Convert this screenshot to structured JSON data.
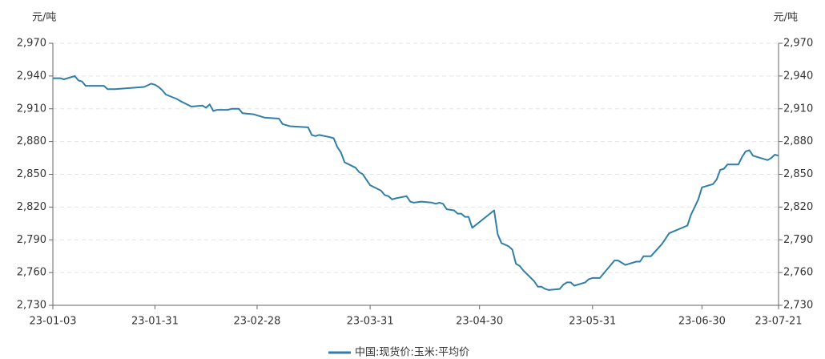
{
  "chart_data": {
    "type": "line",
    "y_unit": "元/吨",
    "y2_unit": "元/吨",
    "x": [
      "23-01-03",
      "23-01-05",
      "23-01-06",
      "23-01-09",
      "23-01-10",
      "23-01-11",
      "23-01-12",
      "23-01-17",
      "23-01-18",
      "23-01-20",
      "23-01-28",
      "23-01-30",
      "23-01-31",
      "23-02-01",
      "23-02-02",
      "23-02-03",
      "23-02-06",
      "23-02-07",
      "23-02-10",
      "23-02-13",
      "23-02-14",
      "23-02-15",
      "23-02-16",
      "23-02-17",
      "23-02-20",
      "23-02-21",
      "23-02-23",
      "23-02-24",
      "23-02-27",
      "23-02-28",
      "23-03-02",
      "23-03-06",
      "23-03-07",
      "23-03-08",
      "23-03-09",
      "23-03-14",
      "23-03-15",
      "23-03-16",
      "23-03-17",
      "23-03-20",
      "23-03-21",
      "23-03-22",
      "23-03-23",
      "23-03-24",
      "23-03-27",
      "23-03-28",
      "23-03-29",
      "23-03-30",
      "23-03-31",
      "23-04-03",
      "23-04-04",
      "23-04-05",
      "23-04-06",
      "23-04-07",
      "23-04-10",
      "23-04-11",
      "23-04-12",
      "23-04-14",
      "23-04-17",
      "23-04-18",
      "23-04-19",
      "23-04-20",
      "23-04-21",
      "23-04-23",
      "23-04-24",
      "23-04-25",
      "23-04-26",
      "23-04-27",
      "23-04-28",
      "23-05-04",
      "23-05-05",
      "23-05-06",
      "23-05-08",
      "23-05-09",
      "23-05-10",
      "23-05-11",
      "23-05-12",
      "23-05-15",
      "23-05-16",
      "23-05-17",
      "23-05-18",
      "23-05-19",
      "23-05-22",
      "23-05-23",
      "23-05-24",
      "23-05-25",
      "23-05-26",
      "23-05-29",
      "23-05-30",
      "23-05-31",
      "23-06-02",
      "23-06-05",
      "23-06-06",
      "23-06-07",
      "23-06-08",
      "23-06-09",
      "23-06-12",
      "23-06-13",
      "23-06-14",
      "23-06-16",
      "23-06-19",
      "23-06-20",
      "23-06-21",
      "23-06-26",
      "23-06-27",
      "23-06-28",
      "23-06-29",
      "23-06-30",
      "23-07-03",
      "23-07-04",
      "23-07-05",
      "23-07-06",
      "23-07-07",
      "23-07-10",
      "23-07-11",
      "23-07-12",
      "23-07-13",
      "23-07-14",
      "23-07-17",
      "23-07-18",
      "23-07-19",
      "23-07-20",
      "23-07-21"
    ],
    "series": [
      {
        "name": "中国:现货价:玉米:平均价",
        "color": "#2f7fa7",
        "values": [
          2938,
          2938,
          2937,
          2940,
          2936,
          2935,
          2931,
          2931,
          2928,
          2928,
          2930,
          2933,
          2932,
          2930,
          2927,
          2923,
          2919,
          2917,
          2912,
          2913,
          2911,
          2914,
          2908,
          2909,
          2909,
          2910,
          2910,
          2906,
          2905,
          2904,
          2902,
          2901,
          2896,
          2895,
          2894,
          2893,
          2886,
          2885,
          2886,
          2884,
          2883,
          2875,
          2870,
          2861,
          2856,
          2852,
          2850,
          2845,
          2840,
          2835,
          2831,
          2830,
          2827,
          2828,
          2830,
          2825,
          2824,
          2825,
          2824,
          2823,
          2824,
          2823,
          2818,
          2817,
          2814,
          2814,
          2811,
          2811,
          2801,
          2817,
          2795,
          2787,
          2784,
          2781,
          2768,
          2766,
          2762,
          2752,
          2747,
          2747,
          2745,
          2744,
          2745,
          2749,
          2751,
          2751,
          2748,
          2751,
          2754,
          2755,
          2755,
          2767,
          2771,
          2771,
          2769,
          2767,
          2770,
          2770,
          2775,
          2775,
          2786,
          2791,
          2796,
          2803,
          2813,
          2820,
          2827,
          2838,
          2841,
          2845,
          2854,
          2855,
          2859,
          2859,
          2866,
          2871,
          2872,
          2867,
          2864,
          2863,
          2865,
          2868,
          2867
        ]
      }
    ],
    "xlim": [
      "23-01-03",
      "23-07-21"
    ],
    "xticks": [
      "23-01-03",
      "23-01-31",
      "23-02-28",
      "23-03-31",
      "23-04-30",
      "23-05-31",
      "23-06-30",
      "23-07-21"
    ],
    "ylim": [
      2730,
      2970
    ],
    "yticks": [
      {
        "value": 2730,
        "label": "2,730"
      },
      {
        "value": 2760,
        "label": "2,760"
      },
      {
        "value": 2790,
        "label": "2,790"
      },
      {
        "value": 2820,
        "label": "2,820"
      },
      {
        "value": 2850,
        "label": "2,850"
      },
      {
        "value": 2880,
        "label": "2,880"
      },
      {
        "value": 2910,
        "label": "2,910"
      },
      {
        "value": 2940,
        "label": "2,940"
      },
      {
        "value": 2970,
        "label": "2,970"
      }
    ],
    "y2lim": [
      2730,
      2970
    ],
    "y2ticks": [
      {
        "value": 2730,
        "label": "2,730"
      },
      {
        "value": 2760,
        "label": "2,760"
      },
      {
        "value": 2790,
        "label": "2,790"
      },
      {
        "value": 2820,
        "label": "2,820"
      },
      {
        "value": 2850,
        "label": "2,850"
      },
      {
        "value": 2880,
        "label": "2,880"
      },
      {
        "value": 2910,
        "label": "2,910"
      },
      {
        "value": 2940,
        "label": "2,940"
      },
      {
        "value": 2970,
        "label": "2,970"
      }
    ],
    "grid": true
  }
}
